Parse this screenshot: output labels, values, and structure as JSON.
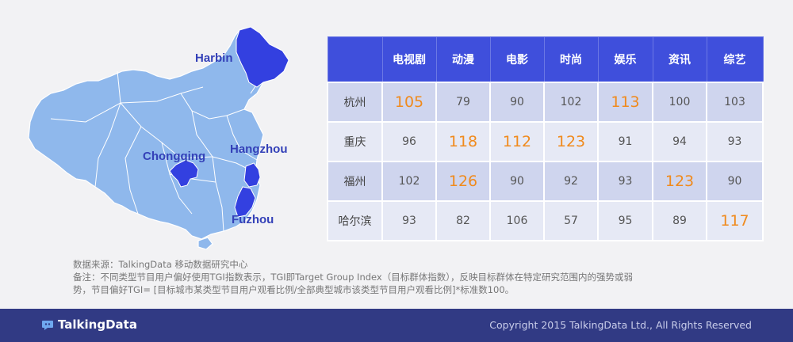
{
  "map": {
    "labels": {
      "harbin": "Harbin",
      "chongqing": "Chongqing",
      "hangzhou": "Hangzhou",
      "fuzhou": "Fuzhou"
    },
    "colors": {
      "base": "#8fb8ec",
      "highlight": "#3340e0",
      "border": "#ffffff",
      "label": "#3441b8"
    }
  },
  "chart_data": {
    "type": "table",
    "columns": [
      "电视剧",
      "动漫",
      "电影",
      "时尚",
      "娱乐",
      "资讯",
      "综艺"
    ],
    "rows": [
      {
        "city": "杭州",
        "values": [
          105,
          79,
          90,
          102,
          113,
          100,
          103
        ],
        "highlight": [
          true,
          false,
          false,
          false,
          true,
          false,
          false
        ]
      },
      {
        "city": "重庆",
        "values": [
          96,
          118,
          112,
          123,
          91,
          94,
          93
        ],
        "highlight": [
          false,
          true,
          true,
          true,
          false,
          false,
          false
        ]
      },
      {
        "city": "福州",
        "values": [
          102,
          126,
          90,
          92,
          93,
          123,
          90
        ],
        "highlight": [
          false,
          true,
          false,
          false,
          false,
          true,
          false
        ]
      },
      {
        "city": "哈尔滨",
        "values": [
          93,
          82,
          106,
          57,
          95,
          89,
          117
        ],
        "highlight": [
          false,
          false,
          false,
          false,
          false,
          false,
          true
        ]
      }
    ],
    "colors": {
      "header": "#3f4fdc",
      "row_odd": "#cfd5ee",
      "row_even": "#e6e9f5",
      "highlight_text": "#f08a1c"
    }
  },
  "notes": {
    "source": "数据来源：TalkingData 移动数据研究中心",
    "remark_line1": "备注：不同类型节目用户偏好使用TGI指数表示，TGI即Target Group Index（目标群体指数），反映目标群体在特定研究范围内的强势或弱",
    "remark_line2": "势，节目偏好TGI= [目标城市某类型节目用户观看比例/全部典型城市该类型节目用户观看比例]*标准数100。"
  },
  "footer": {
    "brand": "TalkingData",
    "copyright": "Copyright 2015 TalkingData Ltd., All Rights Reserved"
  }
}
